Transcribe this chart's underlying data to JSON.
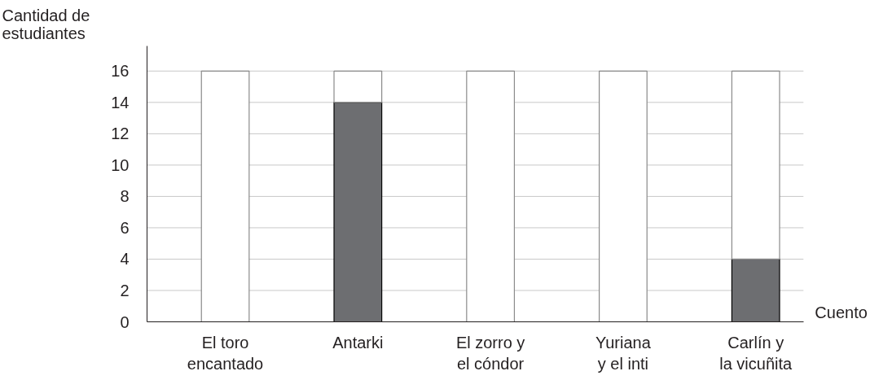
{
  "chart_data": {
    "type": "bar",
    "stacked": true,
    "xlabel": "Cuento",
    "ylabel": "Cantidad de\nestudiantes",
    "categories": [
      "El toro\nencantado",
      "Antarki",
      "El zorro y\nel cóndor",
      "Yuriana\ny el inti",
      "Carlín y\nla vicuñita"
    ],
    "series": [
      {
        "color": "#6d6e71",
        "values": [
          0,
          14,
          0,
          0,
          4
        ]
      },
      {
        "color": "#ffffff",
        "values": [
          16,
          2,
          16,
          16,
          12
        ]
      }
    ],
    "ylim": [
      0,
      17.6
    ],
    "yticks": [
      0,
      2,
      4,
      6,
      8,
      10,
      12,
      14,
      16
    ],
    "grid": "y"
  }
}
